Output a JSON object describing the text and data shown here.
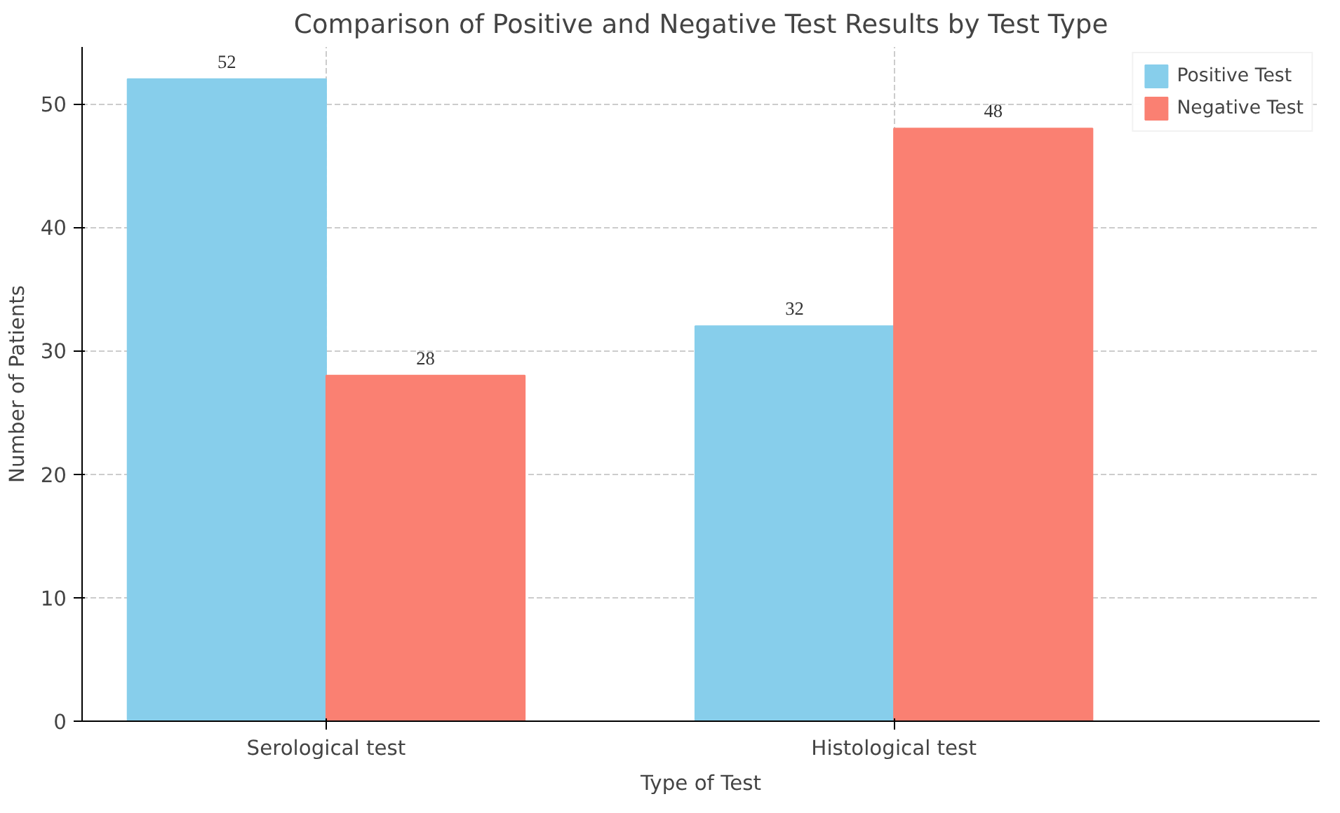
{
  "chart_data": {
    "type": "bar",
    "title": "Comparison of Positive and Negative Test Results by Test Type",
    "xlabel": "Type of Test",
    "ylabel": "Number of Patients",
    "categories": [
      "Serological test",
      "Histological test"
    ],
    "series": [
      {
        "name": "Positive Test",
        "color": "#87ceeb",
        "values": [
          52,
          32
        ]
      },
      {
        "name": "Negative Test",
        "color": "#fa8072",
        "values": [
          28,
          48
        ]
      }
    ],
    "ylim": [
      0,
      54.6
    ],
    "yticks": [
      0,
      10,
      20,
      30,
      40,
      50
    ],
    "grid": true,
    "legend": "top right",
    "data_labels": true
  }
}
